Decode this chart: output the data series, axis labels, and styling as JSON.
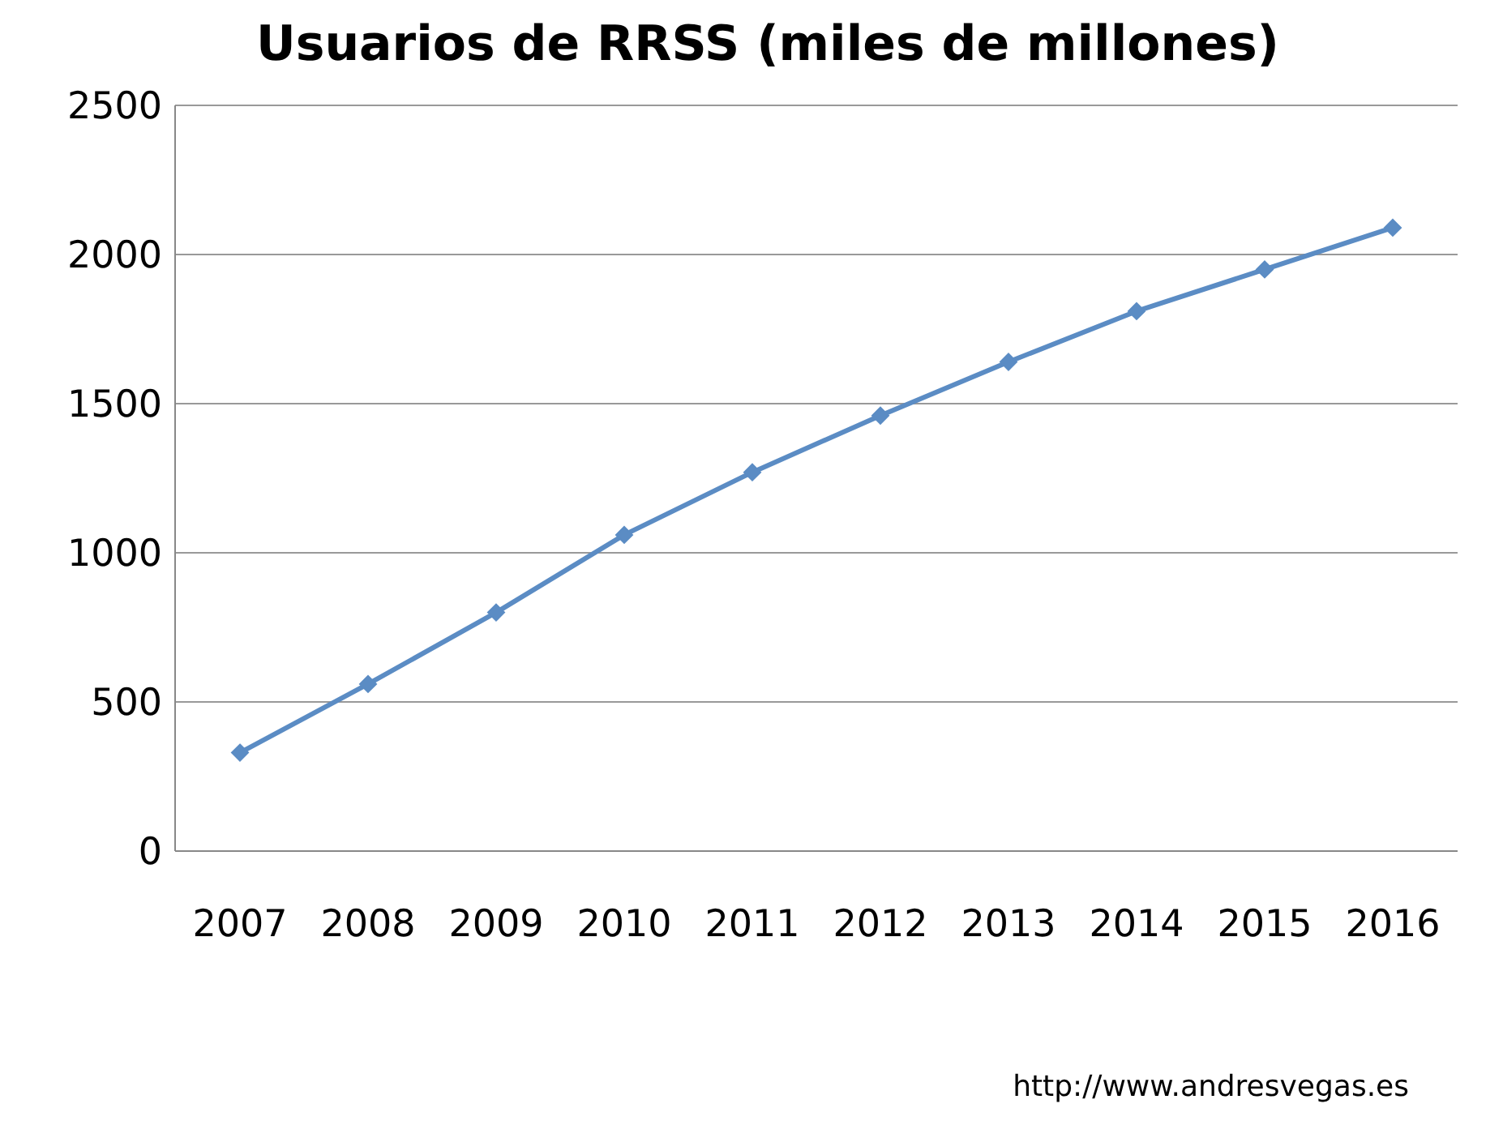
{
  "chart_data": {
    "type": "line",
    "title": "Usuarios de RRSS (miles de millones)",
    "categories": [
      "2007",
      "2008",
      "2009",
      "2010",
      "2011",
      "2012",
      "2013",
      "2014",
      "2015",
      "2016"
    ],
    "series": [
      {
        "color": "#5b8cc4",
        "values": [
          330,
          560,
          800,
          1060,
          1270,
          1460,
          1640,
          1810,
          1950,
          2090
        ]
      }
    ],
    "ylim": [
      0,
      2500
    ],
    "yticks": [
      0,
      500,
      1000,
      1500,
      2000,
      2500
    ],
    "grid": "y",
    "marker": "diamond",
    "annotations": [
      "http://www.andresvegas.es"
    ]
  }
}
